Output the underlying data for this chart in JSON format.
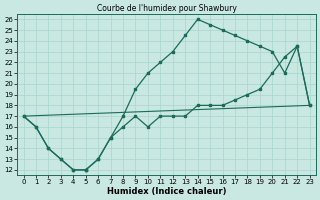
{
  "title": "Courbe de l'humidex pour Shawbury",
  "xlabel": "Humidex (Indice chaleur)",
  "xlim_min": -0.5,
  "xlim_max": 23.5,
  "ylim_min": 11.5,
  "ylim_max": 26.5,
  "xticks": [
    0,
    1,
    2,
    3,
    4,
    5,
    6,
    7,
    8,
    9,
    10,
    11,
    12,
    13,
    14,
    15,
    16,
    17,
    18,
    19,
    20,
    21,
    22,
    23
  ],
  "yticks": [
    12,
    13,
    14,
    15,
    16,
    17,
    18,
    19,
    20,
    21,
    22,
    23,
    24,
    25,
    26
  ],
  "bg_color": "#c9e8e2",
  "line_color": "#1a6b5a",
  "grid_color": "#aad4cc",
  "line1_x": [
    0,
    1,
    2,
    3,
    4,
    5,
    5,
    6,
    7,
    8,
    9,
    10,
    11,
    12,
    13,
    14,
    15,
    16,
    17,
    18,
    19,
    20,
    21,
    22,
    23
  ],
  "line1_y": [
    17,
    16,
    14,
    13,
    12,
    12,
    12,
    13,
    15,
    16,
    17,
    16,
    17,
    17,
    17,
    18,
    18,
    18,
    18.5,
    19,
    19.5,
    21,
    22.5,
    23.5,
    18
  ],
  "line2_x": [
    0,
    1,
    2,
    3,
    4,
    5,
    6,
    7,
    8,
    9,
    10,
    11,
    12,
    13,
    14,
    15,
    16,
    17,
    18,
    19,
    20,
    21,
    22,
    23
  ],
  "line2_y": [
    17,
    16,
    14,
    13,
    12,
    12,
    13,
    15,
    17,
    19.5,
    21,
    22,
    23,
    24.5,
    26,
    25.5,
    25,
    24.5,
    24,
    23.5,
    23,
    21,
    23.5,
    18
  ],
  "line3_x": [
    0,
    23
  ],
  "line3_y": [
    17,
    18
  ],
  "title_fontsize": 5.5,
  "tick_fontsize": 5,
  "label_fontsize": 6
}
